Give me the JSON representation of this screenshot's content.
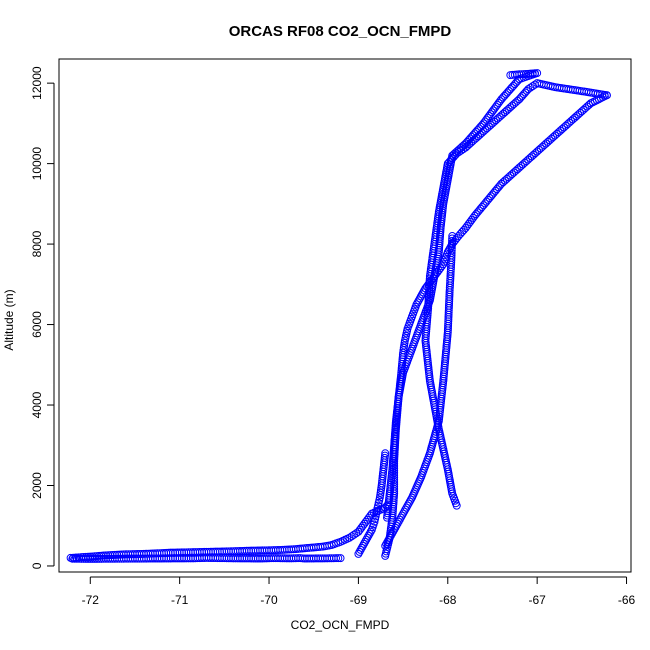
{
  "chart_data": {
    "type": "scatter",
    "title": "ORCAS RF08 CO2_OCN_FMPD",
    "xlabel": "CO2_OCN_FMPD",
    "ylabel": "Altitude (m)",
    "xlim": [
      -72.35,
      -65.95
    ],
    "ylim": [
      -150,
      12600
    ],
    "xticks": [
      -72,
      -71,
      -70,
      -69,
      -68,
      -67,
      -66
    ],
    "xtick_labels": [
      "-72",
      "-71",
      "-70",
      "-69",
      "-68",
      "-67",
      "-66"
    ],
    "yticks": [
      0,
      2000,
      4000,
      6000,
      8000,
      10000,
      12000
    ],
    "ytick_labels": [
      "0",
      "2000",
      "4000",
      "6000",
      "8000",
      "10000",
      "12000"
    ],
    "grid": false,
    "marker": "open-circle",
    "color": "#0000ff",
    "series": [
      {
        "name": "",
        "x": [
          -72.22,
          -72.1,
          -71.95,
          -71.85,
          -71.6,
          -71.4,
          -71.1,
          -70.9,
          -70.7,
          -70.5,
          -70.35,
          -70.2,
          -70.0,
          -69.85,
          -69.7,
          -69.55,
          -69.4,
          -69.3,
          -69.2,
          -69.1,
          -69.0,
          -68.95,
          -68.9,
          -68.85,
          -68.8,
          -68.75,
          -68.7,
          -68.68
        ],
        "y": [
          200,
          220,
          240,
          260,
          290,
          300,
          330,
          340,
          350,
          360,
          370,
          380,
          390,
          400,
          420,
          450,
          480,
          520,
          600,
          700,
          850,
          1000,
          1150,
          1300,
          1350,
          1400,
          1450,
          1500
        ]
      },
      {
        "name": "",
        "x": [
          -72.2,
          -72.0,
          -71.85,
          -70.85,
          -70.7,
          -70.55,
          -70.4,
          -70.1,
          -69.95,
          -69.8,
          -69.75,
          -69.65,
          -69.6,
          -69.35,
          -69.2
        ],
        "y": [
          180,
          175,
          178,
          190,
          200,
          195,
          190,
          185,
          195,
          190,
          190,
          195,
          185,
          190,
          195
        ]
      },
      {
        "name": "",
        "x": [
          -68.7,
          -68.65,
          -68.62,
          -68.6,
          -68.6,
          -68.58,
          -68.55,
          -68.52,
          -68.5,
          -68.48,
          -68.45,
          -68.4,
          -68.35,
          -68.25,
          -68.15,
          -68.05,
          -68.0,
          -67.95,
          -67.88,
          -67.8,
          -67.7,
          -67.55,
          -67.4,
          -67.2,
          -67.0,
          -66.8,
          -66.6,
          -66.4,
          -66.22
        ],
        "y": [
          250,
          700,
          1200,
          1800,
          2600,
          3400,
          4200,
          4800,
          5300,
          5600,
          5900,
          6200,
          6500,
          6900,
          7200,
          7500,
          7800,
          8000,
          8200,
          8400,
          8700,
          9100,
          9500,
          9900,
          10300,
          10700,
          11100,
          11500,
          11700
        ]
      },
      {
        "name": "",
        "x": [
          -66.22,
          -66.5,
          -66.8,
          -67.0,
          -67.1,
          -67.2,
          -67.3,
          -67.4,
          -67.5,
          -67.6,
          -67.7,
          -67.8,
          -67.9,
          -68.0,
          -68.05,
          -68.1,
          -68.15,
          -68.2,
          -68.22,
          -68.25,
          -68.2,
          -68.1,
          -68.0,
          -67.95,
          -67.9
        ],
        "y": [
          11700,
          11800,
          11900,
          12000,
          11850,
          11600,
          11400,
          11200,
          11000,
          10800,
          10600,
          10400,
          10250,
          10000,
          9400,
          8800,
          8000,
          7200,
          6400,
          5600,
          4600,
          3400,
          2400,
          1800,
          1500
        ]
      },
      {
        "name": "",
        "x": [
          -67.3,
          -67.2,
          -67.1,
          -67.0,
          -67.2,
          -67.4,
          -67.6,
          -67.8,
          -67.95,
          -68.0,
          -68.05,
          -68.08,
          -68.1,
          -68.15,
          -68.2,
          -68.3,
          -68.4,
          -68.5,
          -68.55,
          -68.58,
          -68.6,
          -68.62,
          -68.65,
          -68.68
        ],
        "y": [
          12200,
          12220,
          12230,
          12250,
          12100,
          11600,
          11000,
          10500,
          10200,
          9600,
          9000,
          8400,
          7800,
          7200,
          6600,
          6000,
          5400,
          4800,
          4200,
          3600,
          3000,
          2400,
          1800,
          1200
        ]
      },
      {
        "name": "",
        "x": [
          -68.7,
          -68.6,
          -68.5,
          -68.4,
          -68.3,
          -68.2,
          -68.1,
          -68.05,
          -68.0,
          -67.98,
          -67.96,
          -67.95
        ],
        "y": [
          500,
          900,
          1300,
          1700,
          2200,
          2800,
          3600,
          4600,
          5800,
          6800,
          7600,
          8200
        ]
      },
      {
        "name": "",
        "x": [
          -69.0,
          -68.95,
          -68.9,
          -68.85,
          -68.82,
          -68.8,
          -68.78,
          -68.76,
          -68.74,
          -68.72,
          -68.7
        ],
        "y": [
          300,
          500,
          700,
          900,
          1100,
          1300,
          1500,
          1700,
          2000,
          2400,
          2800
        ]
      }
    ]
  }
}
